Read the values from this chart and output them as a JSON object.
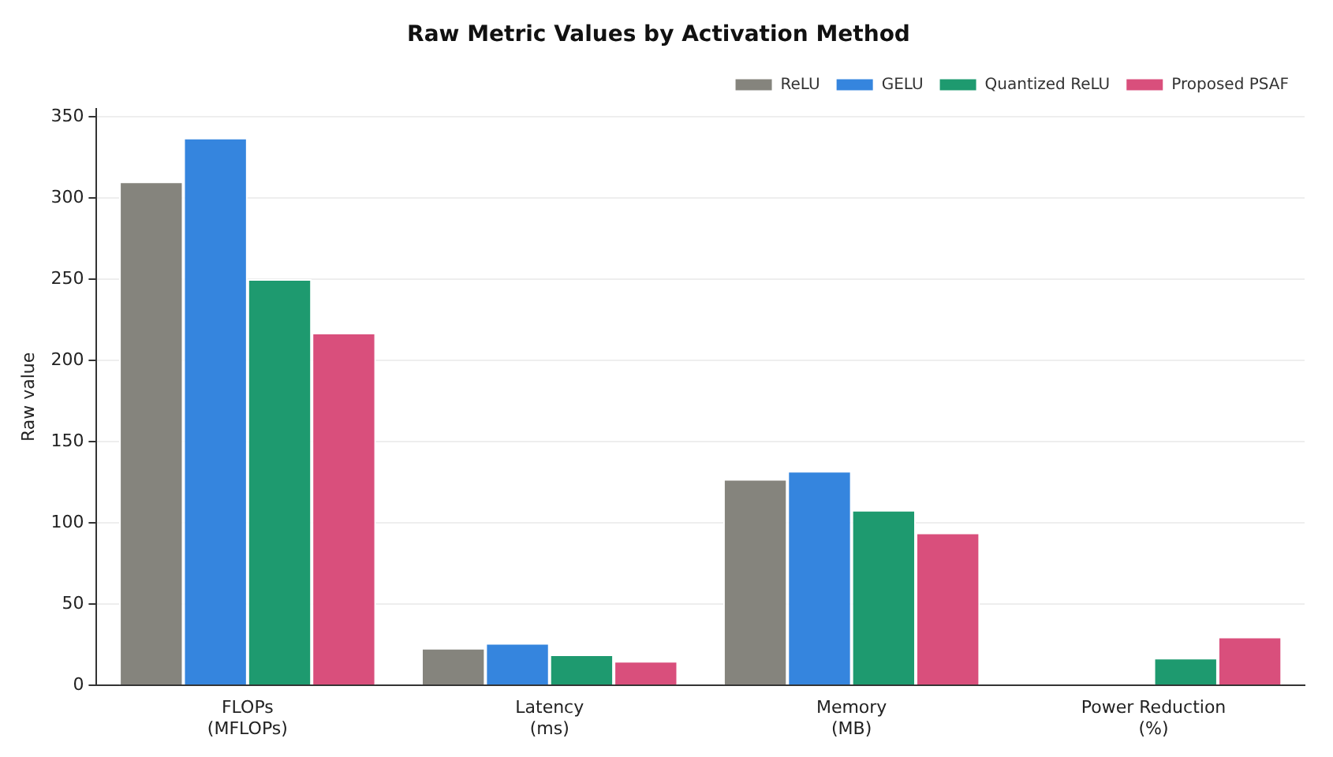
{
  "chart_data": {
    "type": "bar",
    "title": "Raw Metric Values by Activation Method",
    "ylabel": "Raw value",
    "categories": [
      "FLOPs\n(MFLOPs)",
      "Latency\n(ms)",
      "Memory\n(MB)",
      "Power Reduction\n(%)"
    ],
    "series": [
      {
        "name": "ReLU",
        "color": "#85847d",
        "values": [
          310,
          23,
          127,
          0
        ]
      },
      {
        "name": "GELU",
        "color": "#3585de",
        "values": [
          337,
          26,
          132,
          0
        ]
      },
      {
        "name": "Quantized ReLU",
        "color": "#1e9a6f",
        "values": [
          250,
          19,
          108,
          17
        ]
      },
      {
        "name": "Proposed PSAF",
        "color": "#d94f7c",
        "values": [
          217,
          15,
          94,
          30
        ]
      }
    ],
    "ylim": [
      0,
      355
    ],
    "yticks": [
      0,
      50,
      100,
      150,
      200,
      250,
      300,
      350
    ],
    "grid": "y",
    "legend": "top right"
  }
}
